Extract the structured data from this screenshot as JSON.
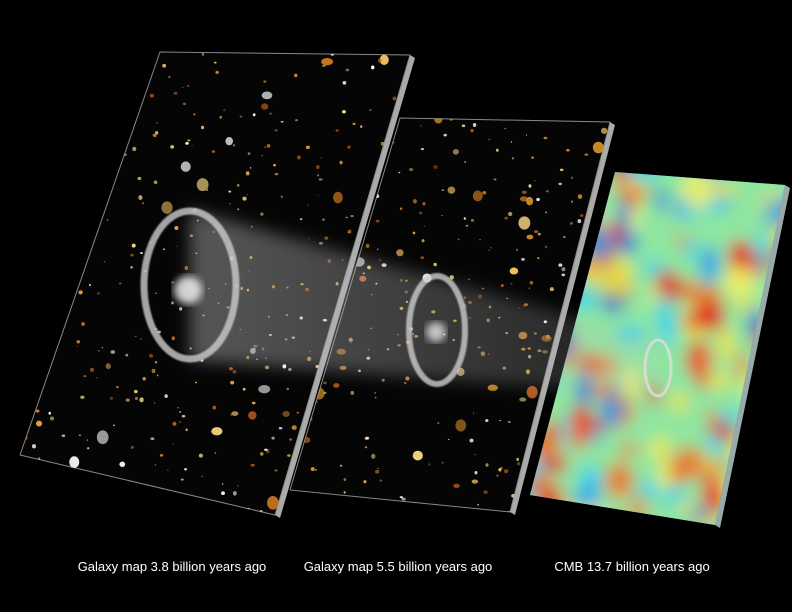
{
  "captions": [
    "Galaxy map 3.8 billion years ago",
    "Galaxy map 5.5 billion years ago",
    "CMB 13.7 billion years ago"
  ]
}
